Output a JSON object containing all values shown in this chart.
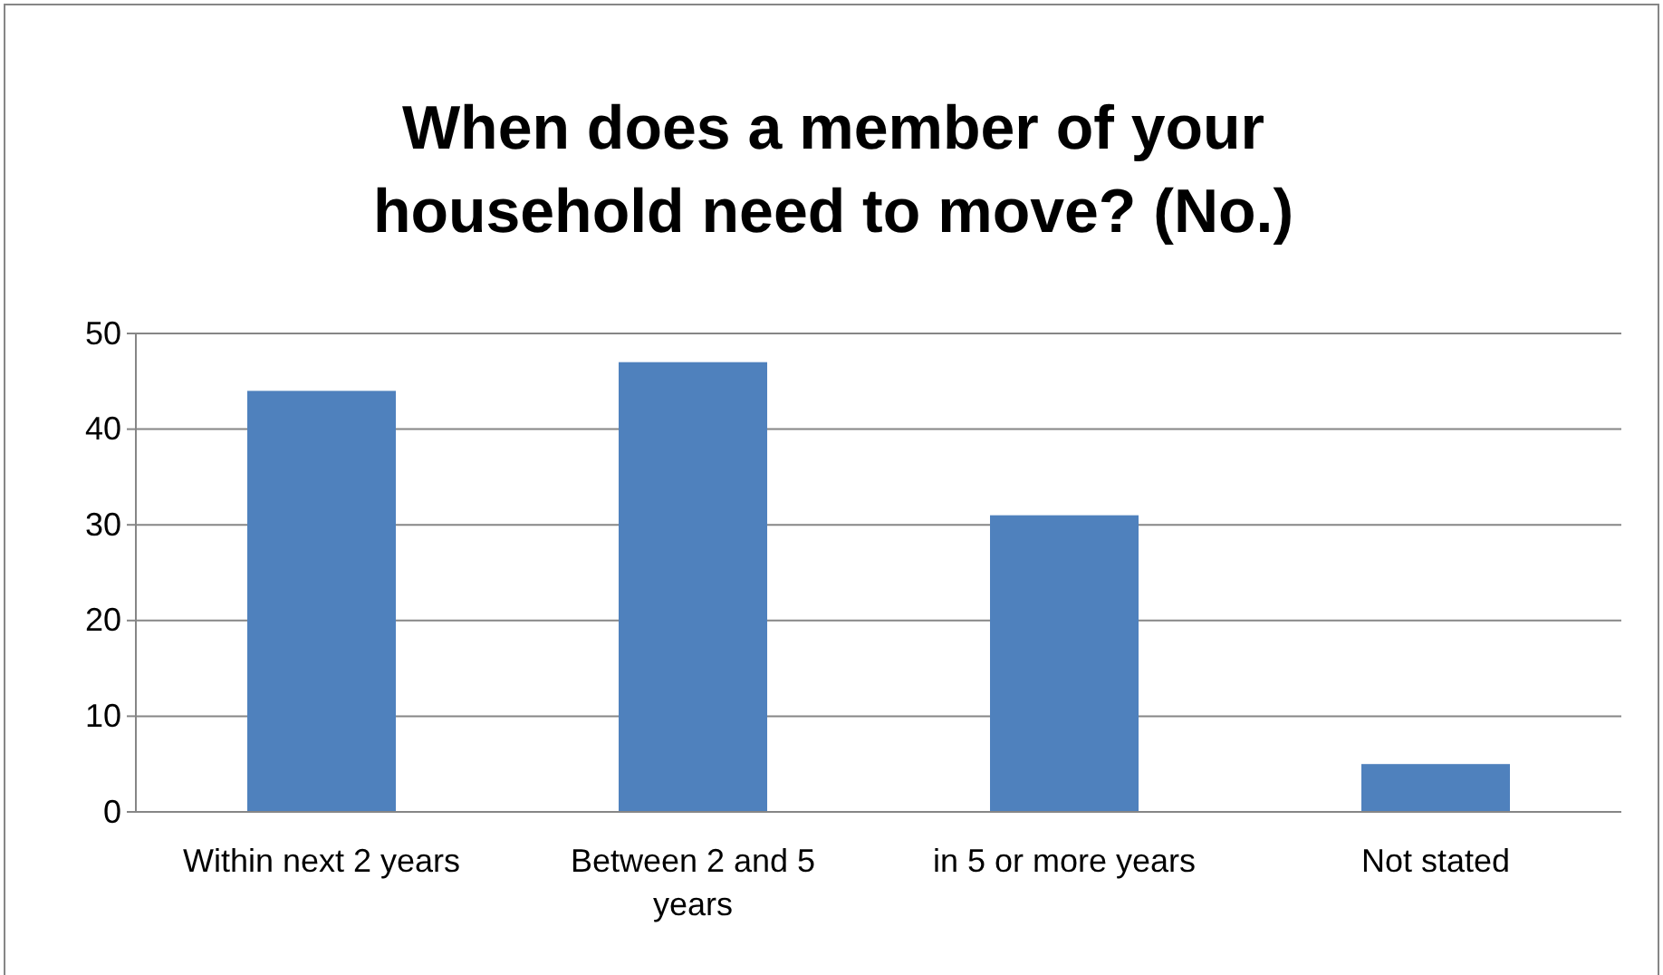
{
  "chart_data": {
    "type": "bar",
    "title": "When does a member of your household need to move? (No.)",
    "categories": [
      "Within next 2 years",
      "Between 2 and 5 years",
      "in 5 or more years",
      "Not stated"
    ],
    "values": [
      44,
      47,
      31,
      5
    ],
    "color": "#4f81bd",
    "ylim": [
      0,
      50
    ],
    "yticks": [
      0,
      10,
      20,
      30,
      40,
      50
    ],
    "grid": "y"
  }
}
